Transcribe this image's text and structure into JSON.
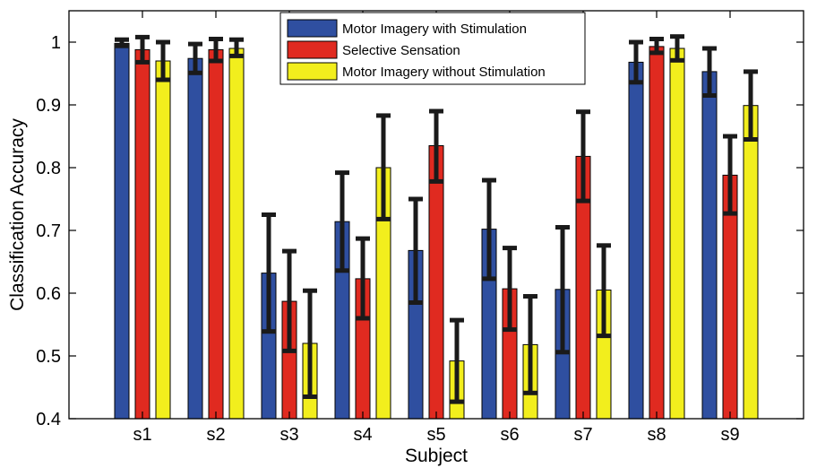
{
  "chart_data": {
    "type": "bar",
    "xlabel": "Subject",
    "ylabel": "Classification Accuracy",
    "ylim": [
      0.4,
      1.05
    ],
    "yticks": [
      0.4,
      0.5,
      0.6,
      0.7,
      0.8,
      0.9,
      1
    ],
    "ytick_labels": [
      "0.4",
      "0.5",
      "0.6",
      "0.7",
      "0.8",
      "0.9",
      "1"
    ],
    "categories": [
      "s1",
      "s2",
      "s3",
      "s4",
      "s5",
      "s6",
      "s7",
      "s8",
      "s9"
    ],
    "legend_position": "top",
    "series": [
      {
        "name": "Motor Imagery with Stimulation",
        "color": "#2f4fa0",
        "values": [
          0.998,
          0.974,
          0.632,
          0.714,
          0.668,
          0.702,
          0.606,
          0.968,
          0.953
        ],
        "error_low": [
          0.994,
          0.951,
          0.539,
          0.636,
          0.585,
          0.623,
          0.506,
          0.936,
          0.915
        ],
        "error_high": [
          1.004,
          0.997,
          0.725,
          0.792,
          0.75,
          0.78,
          0.705,
          1.0,
          0.99
        ]
      },
      {
        "name": "Selective Sensation",
        "color": "#e02a20",
        "values": [
          0.988,
          0.988,
          0.587,
          0.623,
          0.835,
          0.607,
          0.818,
          0.993,
          0.788
        ],
        "error_low": [
          0.968,
          0.97,
          0.508,
          0.56,
          0.778,
          0.542,
          0.747,
          0.983,
          0.727
        ],
        "error_high": [
          1.008,
          1.005,
          0.667,
          0.687,
          0.89,
          0.672,
          0.889,
          1.005,
          0.85
        ]
      },
      {
        "name": "Motor Imagery without Stimulation",
        "color": "#f2ee1d",
        "values": [
          0.97,
          0.99,
          0.52,
          0.8,
          0.492,
          0.518,
          0.605,
          0.99,
          0.899
        ],
        "error_low": [
          0.94,
          0.978,
          0.435,
          0.718,
          0.427,
          0.441,
          0.532,
          0.971,
          0.845
        ],
        "error_high": [
          1.0,
          1.004,
          0.604,
          0.883,
          0.557,
          0.595,
          0.676,
          1.009,
          0.953
        ]
      }
    ]
  }
}
